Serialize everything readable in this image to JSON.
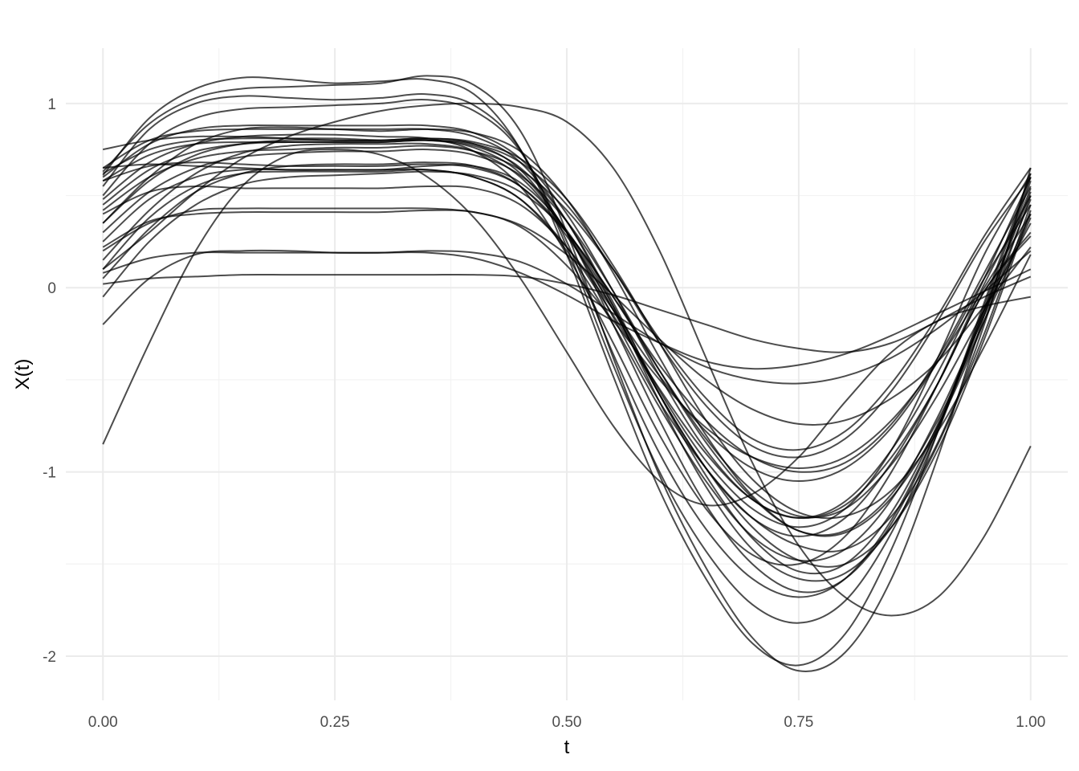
{
  "chart_data": {
    "type": "line",
    "title": "",
    "xlabel": "t",
    "ylabel": "X(t)",
    "xlim": [
      -0.04,
      1.04
    ],
    "ylim": [
      -2.24,
      1.3
    ],
    "x_ticks": [
      0.0,
      0.25,
      0.5,
      0.75,
      1.0
    ],
    "x_tick_labels": [
      "0.00",
      "0.25",
      "0.50",
      "0.75",
      "1.00"
    ],
    "y_ticks": [
      -2,
      -1,
      0,
      1
    ],
    "y_tick_labels": [
      "-2",
      "-1",
      "0",
      "1"
    ],
    "grid": true,
    "legend": "none",
    "line_color": "#000000",
    "x": [
      0,
      0.05,
      0.1,
      0.15,
      0.2,
      0.25,
      0.3,
      0.35,
      0.4,
      0.45,
      0.5,
      0.55,
      0.6,
      0.65,
      0.7,
      0.75,
      0.8,
      0.85,
      0.9,
      0.95,
      1.0
    ],
    "series": [
      {
        "values": [
          0.61,
          0.92,
          1.08,
          1.14,
          1.13,
          1.11,
          1.12,
          1.13,
          1.05,
          0.75,
          0.18,
          -0.48,
          -1.1,
          -1.58,
          -1.93,
          -2.05,
          -1.88,
          -1.42,
          -0.78,
          -0.08,
          0.62
        ]
      },
      {
        "values": [
          0.63,
          0.89,
          1.03,
          1.08,
          1.09,
          1.1,
          1.11,
          1.15,
          1.1,
          0.85,
          0.3,
          -0.38,
          -1.02,
          -1.52,
          -1.9,
          -2.08,
          -1.98,
          -1.58,
          -0.92,
          -0.15,
          0.58
        ]
      },
      {
        "values": [
          0.55,
          0.86,
          1.0,
          1.04,
          1.03,
          1.02,
          1.03,
          1.05,
          0.99,
          0.75,
          0.22,
          -0.42,
          -1.0,
          -1.43,
          -1.72,
          -1.82,
          -1.7,
          -1.33,
          -0.78,
          -0.12,
          0.54
        ]
      },
      {
        "values": [
          0.5,
          0.78,
          0.92,
          0.97,
          0.98,
          0.99,
          1.0,
          1.02,
          0.96,
          0.74,
          0.25,
          -0.36,
          -0.9,
          -1.31,
          -1.58,
          -1.68,
          -1.58,
          -1.26,
          -0.76,
          -0.14,
          0.48
        ]
      },
      {
        "values": [
          0.75,
          0.8,
          0.82,
          0.82,
          0.81,
          0.8,
          0.8,
          0.81,
          0.78,
          0.64,
          0.3,
          -0.16,
          -0.62,
          -0.98,
          -1.25,
          -1.4,
          -1.42,
          -1.24,
          -0.84,
          -0.2,
          0.65
        ]
      },
      {
        "values": [
          0.65,
          0.67,
          0.66,
          0.65,
          0.64,
          0.64,
          0.64,
          0.66,
          0.66,
          0.57,
          0.31,
          -0.1,
          -0.56,
          -0.94,
          -1.2,
          -1.3,
          -1.2,
          -0.88,
          -0.38,
          0.18,
          0.62
        ]
      },
      {
        "values": [
          0.58,
          0.66,
          0.68,
          0.67,
          0.66,
          0.66,
          0.66,
          0.67,
          0.65,
          0.55,
          0.3,
          -0.05,
          -0.42,
          -0.72,
          -0.92,
          -1.0,
          -0.95,
          -0.74,
          -0.38,
          0.08,
          0.55
        ]
      },
      {
        "values": [
          0.4,
          0.52,
          0.55,
          0.54,
          0.54,
          0.54,
          0.54,
          0.55,
          0.54,
          0.45,
          0.22,
          -0.12,
          -0.48,
          -0.78,
          -0.98,
          -1.05,
          -0.98,
          -0.76,
          -0.4,
          0.05,
          0.45
        ]
      },
      {
        "values": [
          0.22,
          0.36,
          0.4,
          0.41,
          0.41,
          0.41,
          0.41,
          0.42,
          0.41,
          0.33,
          0.12,
          -0.18,
          -0.5,
          -0.76,
          -0.92,
          -0.98,
          -0.92,
          -0.72,
          -0.4,
          0.0,
          0.4
        ]
      },
      {
        "values": [
          0.08,
          0.16,
          0.19,
          0.19,
          0.19,
          0.19,
          0.19,
          0.2,
          0.19,
          0.14,
          0.02,
          -0.14,
          -0.3,
          -0.43,
          -0.5,
          -0.52,
          -0.48,
          -0.38,
          -0.22,
          -0.02,
          0.2
        ]
      },
      {
        "values": [
          0.02,
          0.05,
          0.06,
          0.07,
          0.07,
          0.07,
          0.07,
          0.07,
          0.07,
          0.06,
          0.02,
          -0.04,
          -0.12,
          -0.2,
          -0.28,
          -0.33,
          -0.35,
          -0.3,
          -0.18,
          -0.05,
          0.06
        ]
      },
      {
        "values": [
          -0.2,
          0.05,
          0.18,
          0.2,
          0.2,
          0.19,
          0.19,
          0.19,
          0.16,
          0.08,
          -0.04,
          -0.18,
          -0.3,
          -0.4,
          -0.44,
          -0.42,
          -0.36,
          -0.26,
          -0.14,
          -0.02,
          0.1
        ]
      },
      {
        "values": [
          -0.85,
          -0.3,
          0.2,
          0.55,
          0.72,
          0.75,
          0.72,
          0.6,
          0.38,
          0.05,
          -0.35,
          -0.75,
          -1.05,
          -1.18,
          -1.12,
          -0.92,
          -0.62,
          -0.35,
          -0.18,
          -0.1,
          -0.05
        ]
      },
      {
        "values": [
          0.1,
          0.3,
          0.52,
          0.7,
          0.82,
          0.9,
          0.96,
          0.99,
          1.0,
          0.98,
          0.9,
          0.65,
          0.2,
          -0.38,
          -0.95,
          -1.4,
          -1.68,
          -1.78,
          -1.68,
          -1.35,
          -0.86
        ]
      },
      {
        "values": [
          0.35,
          0.6,
          0.78,
          0.86,
          0.87,
          0.86,
          0.85,
          0.86,
          0.84,
          0.74,
          0.48,
          0.08,
          -0.38,
          -0.8,
          -1.13,
          -1.32,
          -1.33,
          -1.14,
          -0.75,
          -0.18,
          0.5
        ]
      },
      {
        "values": [
          0.05,
          0.32,
          0.52,
          0.62,
          0.66,
          0.67,
          0.67,
          0.68,
          0.66,
          0.55,
          0.28,
          -0.12,
          -0.58,
          -0.98,
          -1.3,
          -1.48,
          -1.5,
          -1.3,
          -0.88,
          -0.28,
          0.42
        ]
      },
      {
        "values": [
          0.62,
          0.75,
          0.8,
          0.81,
          0.81,
          0.81,
          0.8,
          0.8,
          0.76,
          0.62,
          0.3,
          -0.2,
          -0.72,
          -1.18,
          -1.5,
          -1.65,
          -1.58,
          -1.28,
          -0.76,
          -0.1,
          0.6
        ]
      },
      {
        "values": [
          0.45,
          0.64,
          0.74,
          0.78,
          0.79,
          0.79,
          0.79,
          0.8,
          0.77,
          0.65,
          0.36,
          -0.08,
          -0.58,
          -1.02,
          -1.36,
          -1.54,
          -1.5,
          -1.22,
          -0.74,
          -0.12,
          0.52
        ]
      },
      {
        "values": [
          0.3,
          0.52,
          0.65,
          0.71,
          0.73,
          0.74,
          0.74,
          0.75,
          0.72,
          0.61,
          0.36,
          -0.02,
          -0.45,
          -0.84,
          -1.14,
          -1.32,
          -1.32,
          -1.12,
          -0.72,
          -0.18,
          0.38
        ]
      },
      {
        "values": [
          0.15,
          0.42,
          0.62,
          0.73,
          0.77,
          0.78,
          0.78,
          0.78,
          0.74,
          0.6,
          0.3,
          -0.12,
          -0.58,
          -0.98,
          -1.25,
          -1.35,
          -1.25,
          -0.95,
          -0.52,
          -0.02,
          0.3
        ]
      },
      {
        "values": [
          0.48,
          0.68,
          0.78,
          0.82,
          0.83,
          0.83,
          0.82,
          0.81,
          0.74,
          0.55,
          0.18,
          -0.3,
          -0.8,
          -1.2,
          -1.45,
          -1.5,
          -1.35,
          -1.0,
          -0.52,
          0.02,
          0.5
        ]
      },
      {
        "values": [
          0.6,
          0.78,
          0.86,
          0.88,
          0.88,
          0.88,
          0.88,
          0.88,
          0.84,
          0.7,
          0.4,
          -0.02,
          -0.48,
          -0.88,
          -1.15,
          -1.25,
          -1.16,
          -0.88,
          -0.46,
          0.05,
          0.6
        ]
      },
      {
        "values": [
          0.25,
          0.48,
          0.6,
          0.64,
          0.64,
          0.64,
          0.64,
          0.64,
          0.6,
          0.48,
          0.22,
          -0.15,
          -0.55,
          -0.9,
          -1.15,
          -1.25,
          -1.18,
          -0.92,
          -0.52,
          -0.02,
          0.28
        ]
      },
      {
        "values": [
          0.42,
          0.6,
          0.7,
          0.74,
          0.75,
          0.76,
          0.76,
          0.77,
          0.74,
          0.64,
          0.42,
          0.1,
          -0.28,
          -0.6,
          -0.82,
          -0.88,
          -0.78,
          -0.52,
          -0.15,
          0.28,
          0.65
        ]
      },
      {
        "values": [
          0.58,
          0.72,
          0.78,
          0.79,
          0.79,
          0.79,
          0.79,
          0.8,
          0.78,
          0.68,
          0.45,
          0.1,
          -0.3,
          -0.64,
          -0.86,
          -0.92,
          -0.82,
          -0.56,
          -0.18,
          0.25,
          0.6
        ]
      },
      {
        "values": [
          -0.05,
          0.25,
          0.45,
          0.56,
          0.6,
          0.61,
          0.62,
          0.63,
          0.61,
          0.52,
          0.3,
          -0.05,
          -0.45,
          -0.82,
          -1.1,
          -1.24,
          -1.2,
          -0.96,
          -0.58,
          -0.12,
          0.35
        ]
      },
      {
        "values": [
          0.2,
          0.35,
          0.42,
          0.43,
          0.43,
          0.43,
          0.43,
          0.43,
          0.41,
          0.34,
          0.18,
          -0.04,
          -0.28,
          -0.5,
          -0.66,
          -0.74,
          -0.72,
          -0.6,
          -0.4,
          -0.1,
          0.22
        ]
      },
      {
        "values": [
          0.35,
          0.58,
          0.72,
          0.78,
          0.8,
          0.8,
          0.8,
          0.81,
          0.79,
          0.7,
          0.48,
          0.12,
          -0.3,
          -0.72,
          -1.04,
          -1.22,
          -1.24,
          -1.1,
          -0.78,
          -0.32,
          0.18
        ]
      },
      {
        "values": [
          0.65,
          0.8,
          0.85,
          0.86,
          0.86,
          0.86,
          0.86,
          0.86,
          0.82,
          0.68,
          0.36,
          -0.1,
          -0.62,
          -1.08,
          -1.42,
          -1.58,
          -1.55,
          -1.3,
          -0.85,
          -0.25,
          0.45
        ]
      },
      {
        "values": [
          0.1,
          0.38,
          0.55,
          0.62,
          0.63,
          0.63,
          0.63,
          0.64,
          0.6,
          0.48,
          0.2,
          -0.2,
          -0.65,
          -1.05,
          -1.35,
          -1.48,
          -1.42,
          -1.15,
          -0.7,
          -0.15,
          0.4
        ]
      }
    ]
  }
}
